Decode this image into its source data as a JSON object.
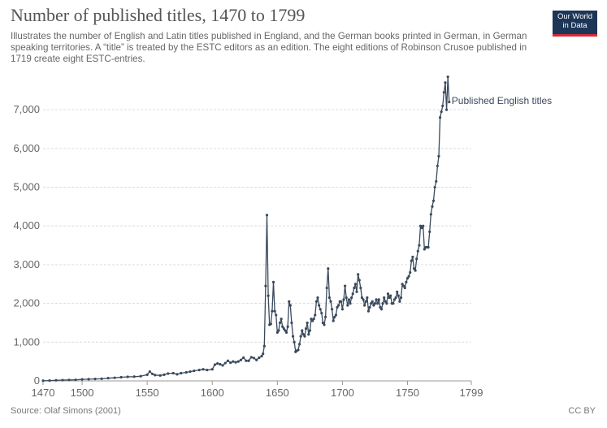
{
  "header": {
    "title": "Number of published titles, 1470 to 1799",
    "subtitle": "Illustrates the number of English and Latin titles published in England, and the German books printed in German, in German speaking territories. A “title” is treated by the ESTC editors as an edition. The eight editions of Robinson Crusoe published in 1719 create eight ESTC-entries."
  },
  "logo": {
    "line1": "Our World",
    "line2": "in Data"
  },
  "footer": {
    "source": "Source: Olaf Simons (2001)",
    "license": "CC BY"
  },
  "colors": {
    "series": "#3a4a5c",
    "grid": "#dddddd",
    "axis": "#666666"
  },
  "chart_data": {
    "type": "line",
    "title": "Number of published titles, 1470 to 1799",
    "xlabel": "",
    "ylabel": "",
    "xlim": [
      1470,
      1799
    ],
    "ylim": [
      0,
      7800
    ],
    "x_ticks": [
      {
        "value": 1470,
        "label": "1470"
      },
      {
        "value": 1500,
        "label": "1500"
      },
      {
        "value": 1550,
        "label": "1550"
      },
      {
        "value": 1600,
        "label": "1600"
      },
      {
        "value": 1650,
        "label": "1650"
      },
      {
        "value": 1700,
        "label": "1700"
      },
      {
        "value": 1750,
        "label": "1750"
      },
      {
        "value": 1799,
        "label": "1799"
      }
    ],
    "y_ticks": [
      {
        "value": 0,
        "label": "0"
      },
      {
        "value": 1000,
        "label": "1,000"
      },
      {
        "value": 2000,
        "label": "2,000"
      },
      {
        "value": 3000,
        "label": "3,000"
      },
      {
        "value": 4000,
        "label": "4,000"
      },
      {
        "value": 5000,
        "label": "5,000"
      },
      {
        "value": 6000,
        "label": "6,000"
      },
      {
        "value": 7000,
        "label": "7,000"
      }
    ],
    "grid": true,
    "series": [
      {
        "name": "Published English titles",
        "label": "Published English titles",
        "points": [
          [
            1470,
            5
          ],
          [
            1475,
            8
          ],
          [
            1480,
            15
          ],
          [
            1485,
            20
          ],
          [
            1490,
            25
          ],
          [
            1495,
            28
          ],
          [
            1500,
            40
          ],
          [
            1505,
            45
          ],
          [
            1510,
            50
          ],
          [
            1515,
            55
          ],
          [
            1520,
            70
          ],
          [
            1525,
            80
          ],
          [
            1530,
            95
          ],
          [
            1535,
            105
          ],
          [
            1540,
            110
          ],
          [
            1545,
            120
          ],
          [
            1550,
            160
          ],
          [
            1552,
            240
          ],
          [
            1554,
            180
          ],
          [
            1556,
            150
          ],
          [
            1560,
            140
          ],
          [
            1563,
            160
          ],
          [
            1566,
            190
          ],
          [
            1570,
            200
          ],
          [
            1573,
            170
          ],
          [
            1576,
            200
          ],
          [
            1580,
            220
          ],
          [
            1583,
            240
          ],
          [
            1586,
            260
          ],
          [
            1590,
            280
          ],
          [
            1593,
            300
          ],
          [
            1596,
            280
          ],
          [
            1600,
            300
          ],
          [
            1602,
            420
          ],
          [
            1604,
            450
          ],
          [
            1606,
            430
          ],
          [
            1608,
            400
          ],
          [
            1610,
            460
          ],
          [
            1612,
            520
          ],
          [
            1614,
            470
          ],
          [
            1616,
            500
          ],
          [
            1618,
            480
          ],
          [
            1620,
            500
          ],
          [
            1622,
            540
          ],
          [
            1624,
            600
          ],
          [
            1626,
            520
          ],
          [
            1628,
            520
          ],
          [
            1630,
            610
          ],
          [
            1632,
            590
          ],
          [
            1634,
            540
          ],
          [
            1636,
            600
          ],
          [
            1638,
            640
          ],
          [
            1639,
            700
          ],
          [
            1640,
            900
          ],
          [
            1641,
            2450
          ],
          [
            1642,
            4280
          ],
          [
            1643,
            2200
          ],
          [
            1644,
            1450
          ],
          [
            1645,
            1470
          ],
          [
            1646,
            1800
          ],
          [
            1647,
            2550
          ],
          [
            1648,
            1800
          ],
          [
            1649,
            1700
          ],
          [
            1650,
            1250
          ],
          [
            1651,
            1300
          ],
          [
            1652,
            1500
          ],
          [
            1653,
            1600
          ],
          [
            1654,
            1400
          ],
          [
            1655,
            1350
          ],
          [
            1656,
            1300
          ],
          [
            1657,
            1250
          ],
          [
            1658,
            1400
          ],
          [
            1659,
            2050
          ],
          [
            1660,
            1950
          ],
          [
            1661,
            1500
          ],
          [
            1662,
            1150
          ],
          [
            1663,
            1000
          ],
          [
            1664,
            750
          ],
          [
            1665,
            780
          ],
          [
            1666,
            800
          ],
          [
            1667,
            950
          ],
          [
            1668,
            1150
          ],
          [
            1669,
            1300
          ],
          [
            1670,
            1200
          ],
          [
            1671,
            1150
          ],
          [
            1672,
            1350
          ],
          [
            1673,
            1500
          ],
          [
            1674,
            1200
          ],
          [
            1675,
            1300
          ],
          [
            1676,
            1600
          ],
          [
            1677,
            1550
          ],
          [
            1678,
            1600
          ],
          [
            1679,
            1700
          ],
          [
            1680,
            2050
          ],
          [
            1681,
            2150
          ],
          [
            1682,
            1950
          ],
          [
            1683,
            1850
          ],
          [
            1684,
            1750
          ],
          [
            1685,
            1500
          ],
          [
            1686,
            1450
          ],
          [
            1687,
            1650
          ],
          [
            1688,
            2400
          ],
          [
            1689,
            2900
          ],
          [
            1690,
            2150
          ],
          [
            1691,
            2050
          ],
          [
            1692,
            1850
          ],
          [
            1693,
            1550
          ],
          [
            1694,
            1650
          ],
          [
            1695,
            1700
          ],
          [
            1696,
            1900
          ],
          [
            1697,
            1950
          ],
          [
            1698,
            2050
          ],
          [
            1699,
            2050
          ],
          [
            1700,
            1850
          ],
          [
            1701,
            2100
          ],
          [
            1702,
            2450
          ],
          [
            1703,
            2150
          ],
          [
            1704,
            1950
          ],
          [
            1705,
            2100
          ],
          [
            1706,
            2000
          ],
          [
            1707,
            2150
          ],
          [
            1708,
            2250
          ],
          [
            1709,
            2400
          ],
          [
            1710,
            2500
          ],
          [
            1711,
            2300
          ],
          [
            1712,
            2750
          ],
          [
            1713,
            2600
          ],
          [
            1714,
            2400
          ],
          [
            1715,
            2150
          ],
          [
            1716,
            2100
          ],
          [
            1717,
            1950
          ],
          [
            1718,
            2050
          ],
          [
            1719,
            2150
          ],
          [
            1720,
            1800
          ],
          [
            1721,
            1900
          ],
          [
            1722,
            2000
          ],
          [
            1723,
            2050
          ],
          [
            1724,
            1950
          ],
          [
            1725,
            2000
          ],
          [
            1726,
            2100
          ],
          [
            1727,
            2000
          ],
          [
            1728,
            2100
          ],
          [
            1729,
            1900
          ],
          [
            1730,
            1850
          ],
          [
            1731,
            2000
          ],
          [
            1732,
            2150
          ],
          [
            1733,
            2050
          ],
          [
            1734,
            2000
          ],
          [
            1735,
            2250
          ],
          [
            1736,
            2150
          ],
          [
            1737,
            2200
          ],
          [
            1738,
            2000
          ],
          [
            1739,
            2000
          ],
          [
            1740,
            2100
          ],
          [
            1741,
            2150
          ],
          [
            1742,
            2300
          ],
          [
            1743,
            2200
          ],
          [
            1744,
            2050
          ],
          [
            1745,
            2150
          ],
          [
            1746,
            2500
          ],
          [
            1747,
            2450
          ],
          [
            1748,
            2400
          ],
          [
            1749,
            2550
          ],
          [
            1750,
            2650
          ],
          [
            1751,
            2700
          ],
          [
            1752,
            2800
          ],
          [
            1753,
            3100
          ],
          [
            1754,
            3200
          ],
          [
            1755,
            2900
          ],
          [
            1756,
            2850
          ],
          [
            1757,
            3150
          ],
          [
            1758,
            3350
          ],
          [
            1759,
            3500
          ],
          [
            1760,
            4000
          ],
          [
            1761,
            3950
          ],
          [
            1762,
            4000
          ],
          [
            1763,
            3400
          ],
          [
            1764,
            3450
          ],
          [
            1765,
            3450
          ],
          [
            1766,
            3450
          ],
          [
            1767,
            3850
          ],
          [
            1768,
            4300
          ],
          [
            1769,
            4500
          ],
          [
            1770,
            4650
          ],
          [
            1771,
            5000
          ],
          [
            1772,
            5150
          ],
          [
            1773,
            5550
          ],
          [
            1774,
            5800
          ],
          [
            1775,
            6800
          ],
          [
            1776,
            6950
          ],
          [
            1777,
            7100
          ],
          [
            1778,
            7450
          ],
          [
            1779,
            7700
          ],
          [
            1780,
            7000
          ],
          [
            1781,
            7850
          ],
          [
            1782,
            7200
          ]
        ]
      }
    ]
  }
}
